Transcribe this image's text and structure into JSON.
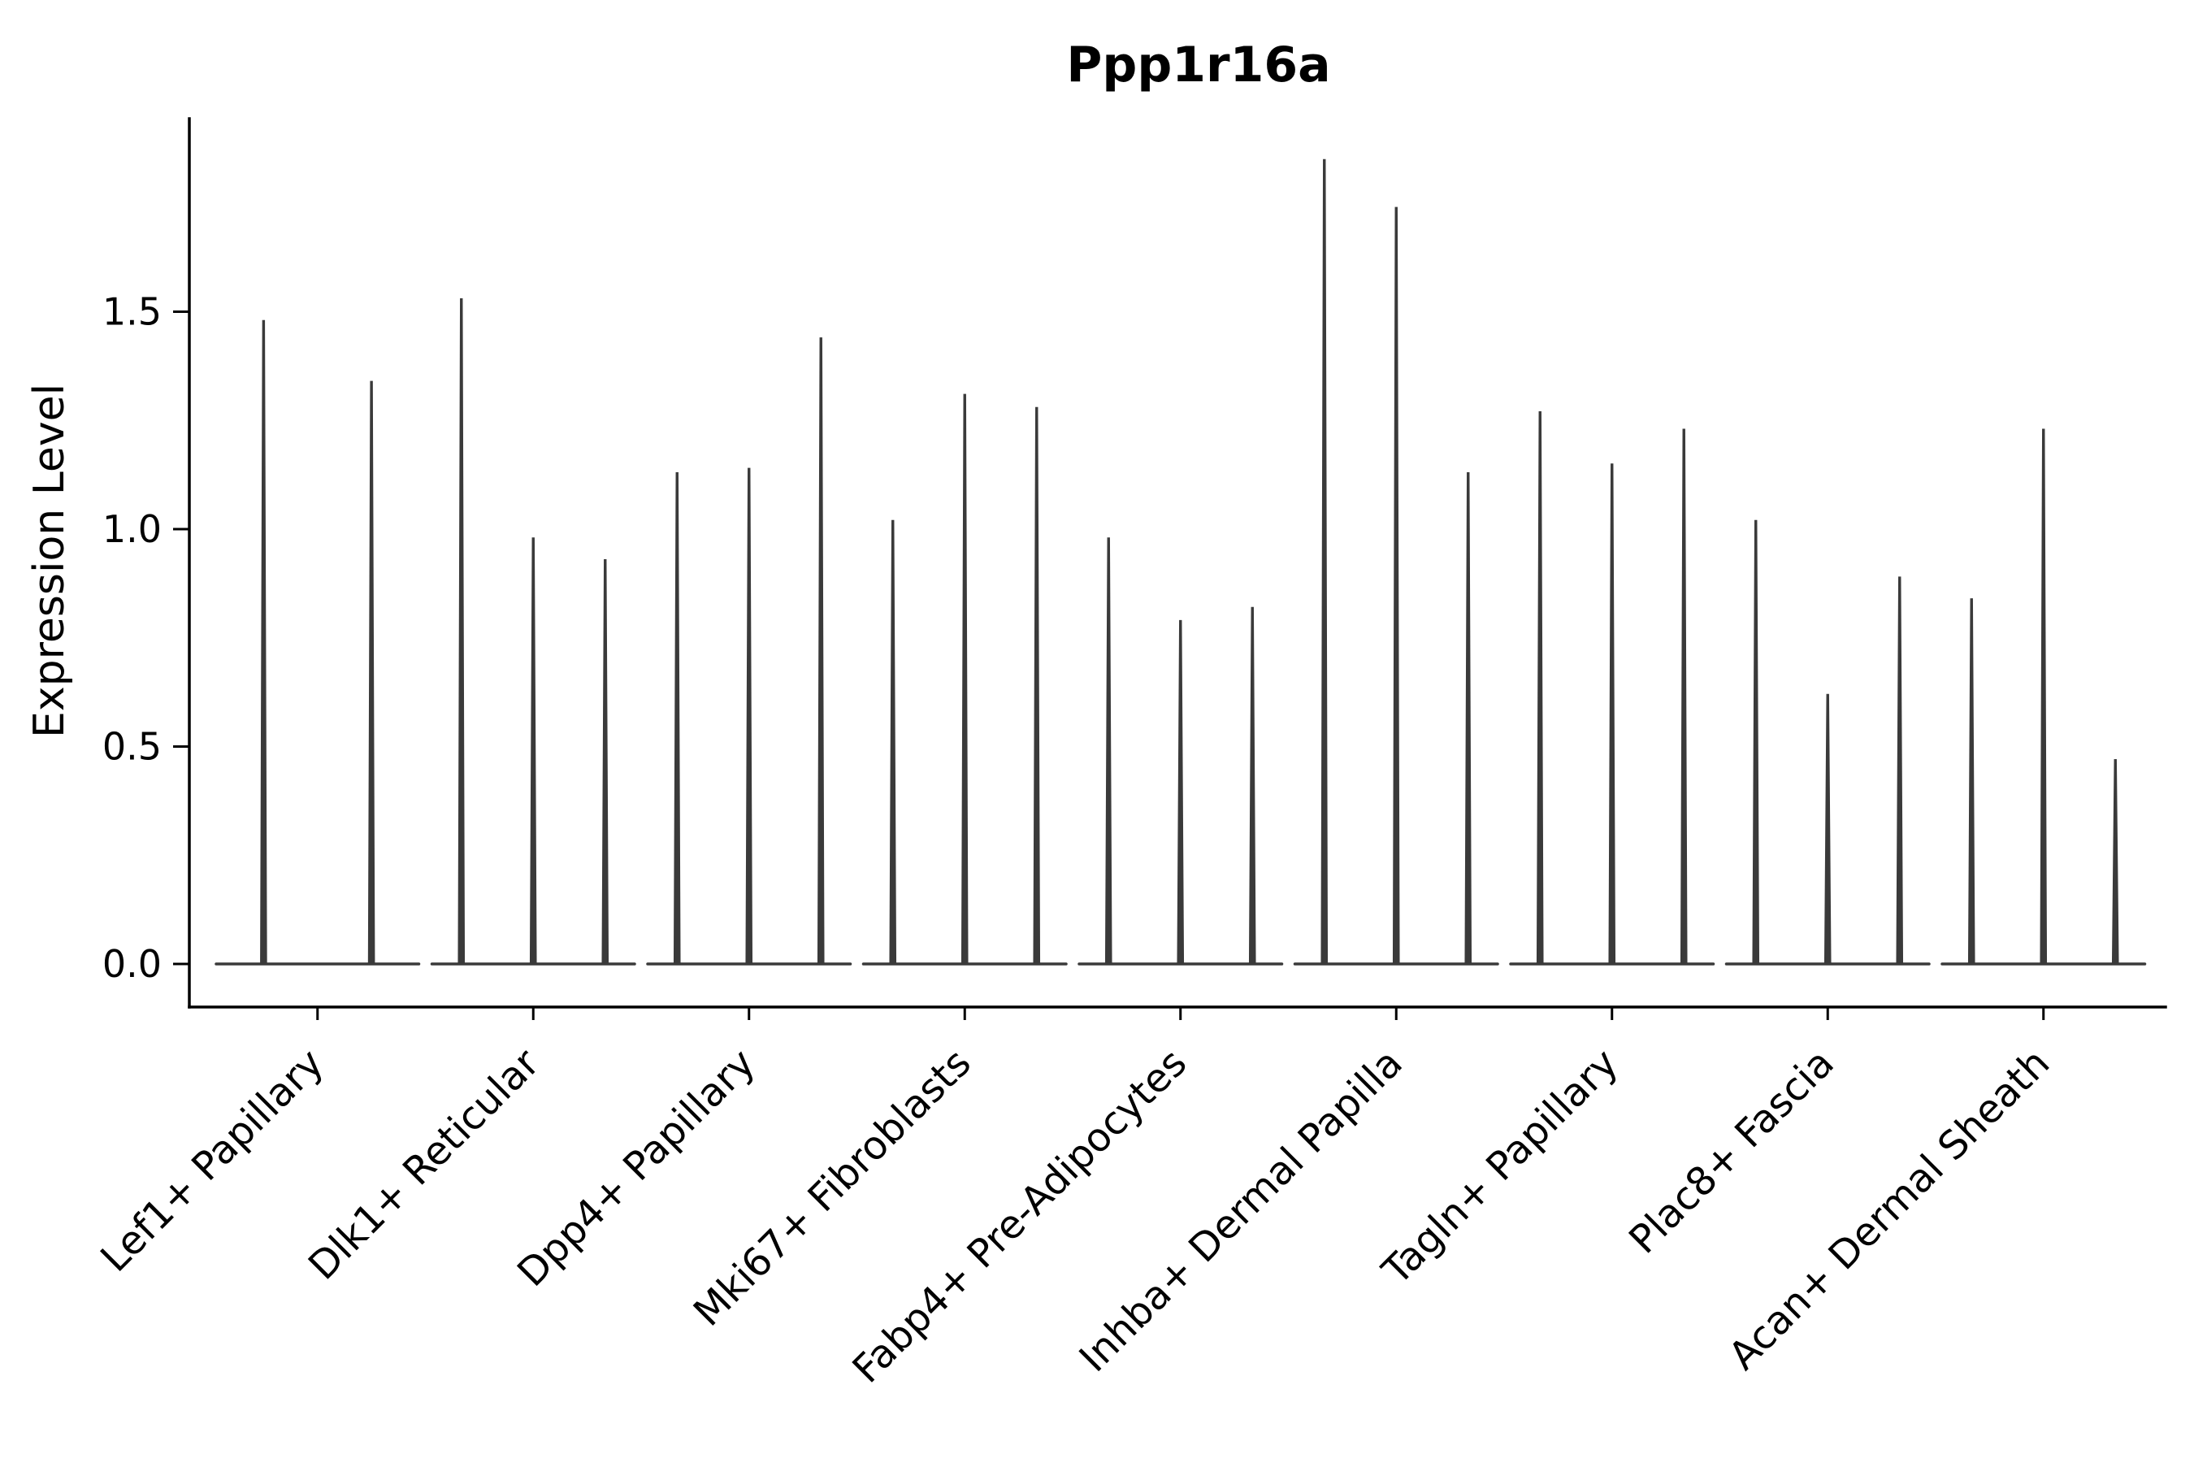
{
  "chart_data": {
    "type": "violin",
    "title": "Ppp1r16a",
    "ylabel": "Expression Level",
    "xlabel": "",
    "ylim": [
      0,
      1.94
    ],
    "yticks": [
      0,
      0.5,
      1,
      1.5
    ],
    "ytick_labels": [
      "0.0",
      "0.5",
      "1.0",
      "1.5"
    ],
    "grid": false,
    "legend": false,
    "violin_color": "#3a3a3a",
    "groups": [
      {
        "category": "Lef1+ Papillary",
        "values": [
          1.48,
          1.34
        ]
      },
      {
        "category": "Dlk1+ Reticular",
        "values": [
          1.53,
          0.98,
          0.93
        ]
      },
      {
        "category": "Dpp4+ Papillary",
        "values": [
          1.13,
          1.14,
          1.44
        ]
      },
      {
        "category": "Mki67+ Fibroblasts",
        "values": [
          1.02,
          1.31,
          1.28
        ]
      },
      {
        "category": "Fabp4+ Pre-Adipocytes",
        "values": [
          0.98,
          0.79,
          0.82
        ]
      },
      {
        "category": "Inhba+ Dermal Papilla",
        "values": [
          1.85,
          1.74,
          1.13
        ]
      },
      {
        "category": "Tagln+ Papillary",
        "values": [
          1.27,
          1.15,
          1.23
        ]
      },
      {
        "category": "Plac8+ Fascia",
        "values": [
          1.02,
          0.62,
          0.89
        ]
      },
      {
        "category": "Acan+ Dermal Sheath",
        "values": [
          0.84,
          1.23,
          0.47
        ]
      }
    ]
  }
}
